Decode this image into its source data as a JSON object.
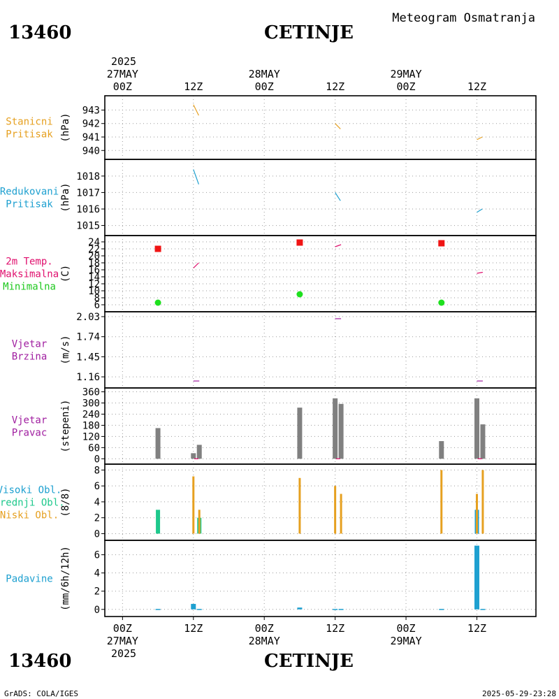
{
  "header": {
    "station_id": "13460",
    "station_name": "CETINJE",
    "product_title": "Meteogram Osmatranja"
  },
  "footer": {
    "station_id": "13460",
    "station_name": "CETINJE",
    "credit": "GrADS: COLA/IGES",
    "timestamp": "2025-05-29-23:28"
  },
  "time_axis": {
    "year": "2025",
    "date_labels": [
      "27MAY",
      "28MAY",
      "29MAY"
    ],
    "ticks": [
      {
        "hour": 0,
        "label": "00Z"
      },
      {
        "hour": 12,
        "label": "12Z"
      },
      {
        "hour": 24,
        "label": "00Z"
      },
      {
        "hour": 36,
        "label": "12Z"
      },
      {
        "hour": 48,
        "label": "00Z"
      },
      {
        "hour": 60,
        "label": "12Z"
      }
    ],
    "range_hours": [
      -3,
      70
    ]
  },
  "chart_data": [
    {
      "type": "line",
      "panel": "station_pressure",
      "labels": [
        "Stanicni",
        "Pritisak"
      ],
      "label_color": "#e6a020",
      "ylabel": "(hPa)",
      "ylim": [
        939.6,
        943.8
      ],
      "yticks": [
        940,
        941,
        942,
        943
      ],
      "series": [
        {
          "name": "Stanicni Pritisak",
          "color": "#e6a020",
          "segments": [
            [
              [
                12.0,
                943.4
              ],
              [
                12.9,
                942.6
              ]
            ],
            [
              [
                36.0,
                942.0
              ],
              [
                36.9,
                941.6
              ]
            ],
            [
              [
                60.0,
                940.8
              ],
              [
                60.9,
                941.0
              ]
            ]
          ]
        }
      ]
    },
    {
      "type": "line",
      "panel": "reduced_pressure",
      "labels": [
        "Redukovani",
        "Pritisak"
      ],
      "label_color": "#1ea0d0",
      "ylabel": "(hPa)",
      "ylim": [
        1014.6,
        1018.8
      ],
      "yticks": [
        1015,
        1016,
        1017,
        1018
      ],
      "series": [
        {
          "name": "Redukovani Pritisak",
          "color": "#1ea0d0",
          "segments": [
            [
              [
                12.0,
                1018.4
              ],
              [
                12.9,
                1017.5
              ]
            ],
            [
              [
                36.0,
                1017.0
              ],
              [
                36.9,
                1016.5
              ]
            ],
            [
              [
                60.0,
                1015.8
              ],
              [
                60.9,
                1016.0
              ]
            ]
          ]
        }
      ]
    },
    {
      "type": "scatter",
      "panel": "temperature",
      "labels": [
        "2m Temp.",
        "Maksimalna",
        "Minimalna"
      ],
      "label_colors": [
        "#e0106e",
        "#e0106e",
        "#1ec81e"
      ],
      "ylabel": "(C)",
      "ylim": [
        5,
        24.8
      ],
      "yticks": [
        6,
        8,
        10,
        12,
        14,
        16,
        18,
        20,
        22,
        24
      ],
      "series": [
        {
          "name": "2m Temp.",
          "color": "#e0106e",
          "kind": "line",
          "segments": [
            [
              [
                12.0,
                16.5
              ],
              [
                12.9,
                18.0
              ]
            ],
            [
              [
                36.0,
                22.6
              ],
              [
                37.0,
                23.2
              ]
            ],
            [
              [
                60.0,
                15.0
              ],
              [
                61.0,
                15.3
              ]
            ]
          ]
        },
        {
          "name": "Maksimalna",
          "color": "#f01414",
          "kind": "square",
          "points": [
            [
              6,
              22.0
            ],
            [
              30,
              23.8
            ],
            [
              54,
              23.6
            ]
          ]
        },
        {
          "name": "Minimalna",
          "color": "#1ee01e",
          "kind": "circle",
          "points": [
            [
              6,
              6.6
            ],
            [
              30,
              9.0
            ],
            [
              54,
              6.6
            ]
          ]
        }
      ]
    },
    {
      "type": "line",
      "panel": "wind_speed",
      "labels": [
        "Vjetar",
        "Brzina"
      ],
      "label_color": "#a01ea0",
      "ylabel": "(m/s)",
      "ylim": [
        1.05,
        2.05
      ],
      "yticks": [
        1.16,
        1.45,
        1.74,
        2.03
      ],
      "series": [
        {
          "name": "Vjetar Brzina",
          "color": "#a01ea0",
          "segments": [
            [
              [
                12.0,
                1.1
              ],
              [
                13.0,
                1.1
              ]
            ],
            [
              [
                36.0,
                2.0
              ],
              [
                37.0,
                2.0
              ]
            ],
            [
              [
                60.0,
                1.1
              ],
              [
                61.0,
                1.1
              ]
            ]
          ]
        }
      ]
    },
    {
      "type": "bar",
      "panel": "wind_direction",
      "labels": [
        "Vjetar",
        "Pravac"
      ],
      "label_color": "#a01ea0",
      "ylabel": "(stepeni)",
      "ylim": [
        -10,
        362
      ],
      "yticks": [
        0,
        60,
        120,
        180,
        240,
        300,
        360
      ],
      "bar_color": "#808080",
      "bars": [
        [
          6,
          165
        ],
        [
          12,
          30
        ],
        [
          13,
          75
        ],
        [
          30,
          275
        ],
        [
          36,
          325
        ],
        [
          37,
          295
        ],
        [
          54,
          95
        ],
        [
          60,
          325
        ],
        [
          61,
          185
        ]
      ],
      "markers": {
        "color": "#e0106e",
        "points": [
          [
            12.5,
            0
          ],
          [
            36.5,
            0
          ],
          [
            60.5,
            0
          ]
        ]
      }
    },
    {
      "type": "bar",
      "panel": "clouds",
      "labels": [
        "Visoki Obl.",
        "Srednji Obl.",
        "Niski Obl."
      ],
      "label_colors": [
        "#1ea0d0",
        "#1ec88c",
        "#e6a020"
      ],
      "ylabel": "(8/8)",
      "ylim": [
        -0.4,
        8.3
      ],
      "yticks": [
        0,
        2,
        4,
        6,
        8
      ],
      "series": [
        {
          "name": "Visoki Obl.",
          "color": "#1ea0d0",
          "values": [
            [
              60,
              3
            ]
          ]
        },
        {
          "name": "Srednji Obl.",
          "color": "#1ec88c",
          "values": [
            [
              6,
              3
            ],
            [
              13,
              2
            ]
          ]
        },
        {
          "name": "Niski Obl.",
          "color": "#e6a020",
          "values": [
            [
              12,
              7.2
            ],
            [
              13,
              3
            ],
            [
              30,
              7
            ],
            [
              36,
              6
            ],
            [
              37,
              5
            ],
            [
              54,
              8
            ],
            [
              60,
              5
            ],
            [
              61,
              8
            ]
          ]
        }
      ]
    },
    {
      "type": "bar",
      "panel": "precipitation",
      "labels": [
        "Padavine"
      ],
      "label_color": "#1ea0d0",
      "ylabel": "(mm/6h/12h)",
      "ylim": [
        -0.4,
        7.2
      ],
      "yticks": [
        0,
        2,
        4,
        6
      ],
      "bar_color": "#1ea0d0",
      "bars": [
        [
          6,
          0.05
        ],
        [
          12,
          0.6
        ],
        [
          13,
          0.05
        ],
        [
          30,
          0.2
        ],
        [
          36,
          0.05
        ],
        [
          37,
          0.05
        ],
        [
          54,
          0.05
        ],
        [
          60,
          7.0
        ],
        [
          61,
          0.05
        ]
      ]
    }
  ]
}
